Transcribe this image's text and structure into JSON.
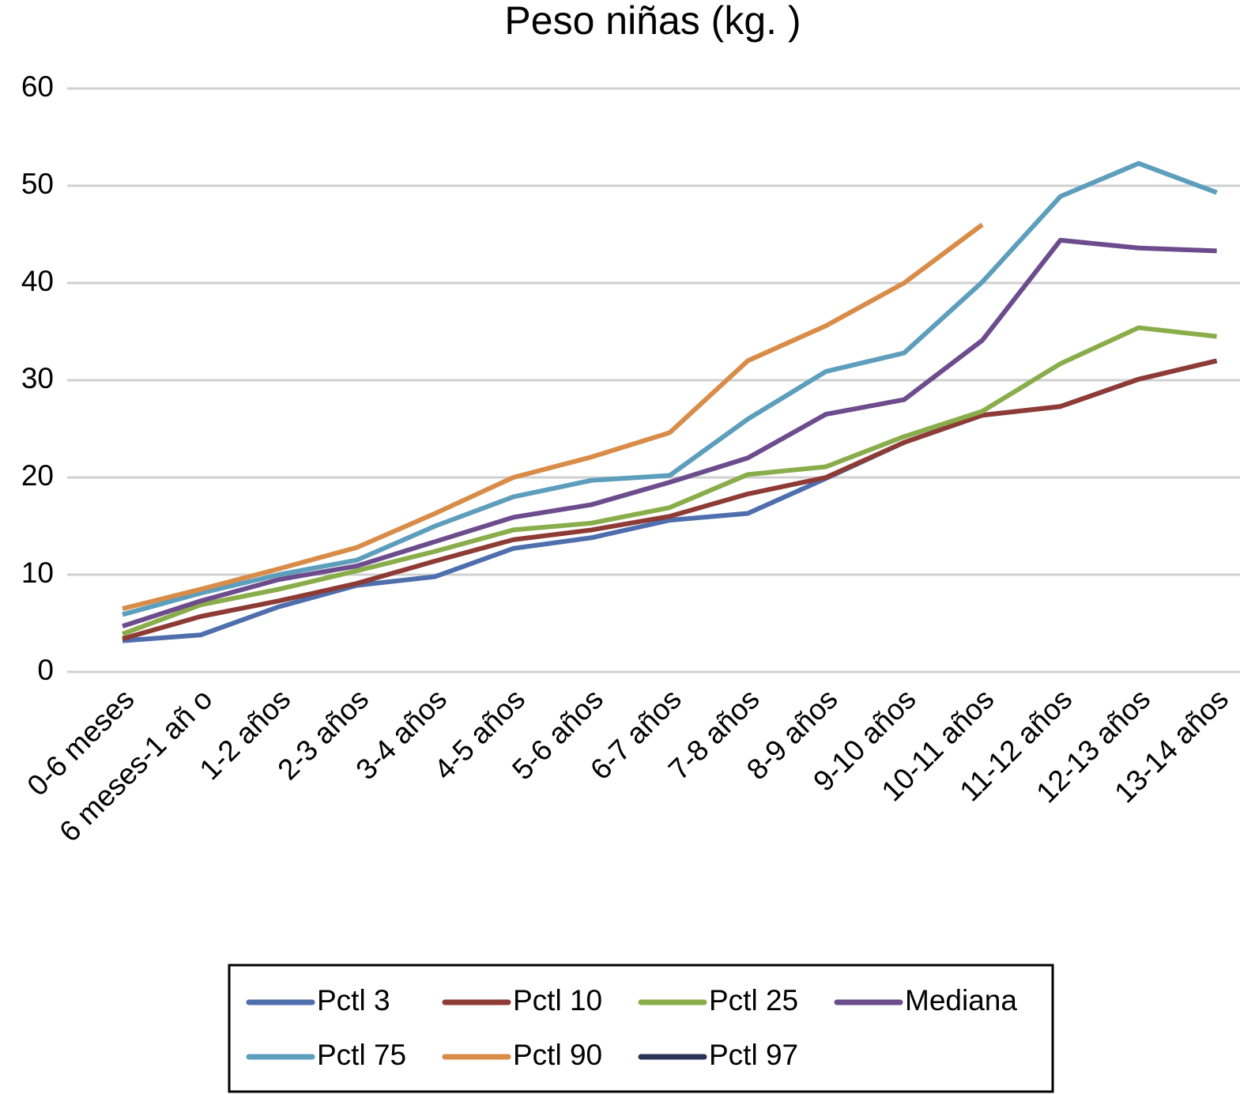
{
  "chart_data": {
    "type": "line",
    "title": "Peso niñas (kg. )",
    "categories": [
      "0-6 meses",
      "6 meses-1 añ o",
      "1-2 años",
      "2-3 años",
      "3-4 años",
      "4-5 años",
      "5-6 años",
      "6-7 años",
      "7-8 años",
      "8-9 años",
      "9-10 años",
      "10-11 años",
      "11-12 años",
      "12-13 años",
      "13-14 años"
    ],
    "series": [
      {
        "name": "Pctl 3",
        "color": "#4f6eae",
        "values": [
          3.2,
          3.8,
          6.7,
          8.9,
          9.8,
          12.7,
          13.8,
          15.6,
          16.3,
          19.9,
          23.6,
          26.4,
          27.3,
          30.1,
          32.0
        ]
      },
      {
        "name": "Pctl 10",
        "color": "#8e3b36",
        "values": [
          3.4,
          5.7,
          7.3,
          9.1,
          11.4,
          13.6,
          14.6,
          16.0,
          18.3,
          20.0,
          23.6,
          26.4,
          27.3,
          30.1,
          32.0
        ]
      },
      {
        "name": "Pctl 25",
        "color": "#8aad4b",
        "values": [
          3.9,
          6.9,
          8.5,
          10.4,
          12.4,
          14.6,
          15.3,
          16.9,
          20.3,
          21.1,
          24.2,
          26.8,
          31.7,
          35.4,
          34.5
        ]
      },
      {
        "name": "Mediana",
        "color": "#6c4c8c",
        "values": [
          4.7,
          7.3,
          9.5,
          10.9,
          13.4,
          15.9,
          17.2,
          19.5,
          22.0,
          26.5,
          28.0,
          34.1,
          44.4,
          43.6,
          43.3
        ]
      },
      {
        "name": "Pctl 75",
        "color": "#5c9ebc",
        "values": [
          5.9,
          8.1,
          10.0,
          11.5,
          15.0,
          18.0,
          19.7,
          20.2,
          26.0,
          30.9,
          32.8,
          40.1,
          48.9,
          52.3,
          49.3
        ]
      },
      {
        "name": "Pctl 90",
        "color": "#d98c48",
        "values": [
          6.5,
          8.5,
          10.6,
          12.8,
          16.3,
          20.0,
          22.1,
          24.6,
          32.0,
          35.6,
          40.0,
          46.0,
          null,
          null,
          null
        ]
      },
      {
        "name": "Pctl 97",
        "color": "#2a3358",
        "values": [
          null,
          null,
          null,
          null,
          null,
          null,
          null,
          null,
          null,
          null,
          null,
          null,
          null,
          null,
          null
        ]
      }
    ],
    "ylim": [
      0,
      60
    ],
    "yticks": [
      0,
      10,
      20,
      30,
      40,
      50,
      60
    ],
    "grid": true
  }
}
